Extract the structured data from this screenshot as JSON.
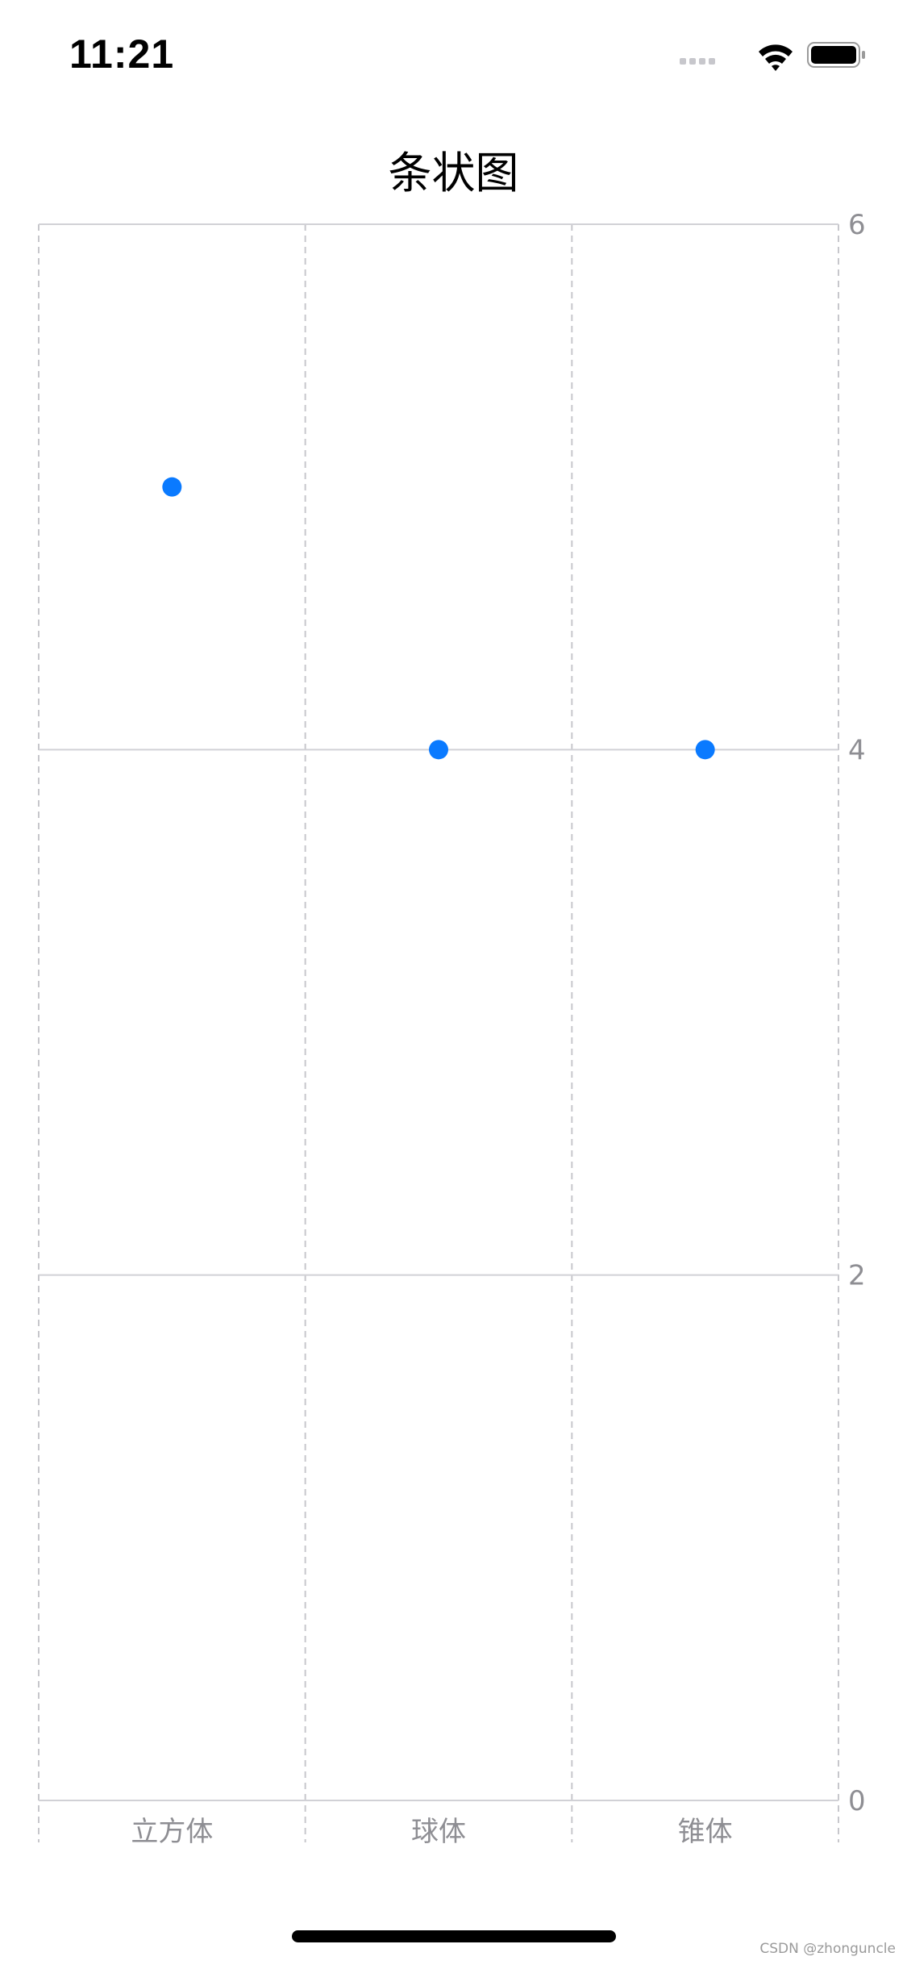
{
  "status_bar": {
    "time": "11:21",
    "icons": [
      "signal-dots-icon",
      "wifi-icon",
      "battery-icon"
    ]
  },
  "nav": {
    "title": "条状图"
  },
  "watermark": "CSDN @zhonguncle",
  "colors": {
    "point": "#0a7aff",
    "gridline": "#d1d1d6",
    "dashed": "#c7c7cc",
    "label": "#8e8e93"
  },
  "chart_data": {
    "type": "scatter",
    "title": "",
    "xlabel": "",
    "ylabel": "",
    "categories": [
      "立方体",
      "球体",
      "锥体"
    ],
    "values": [
      5,
      4,
      4
    ],
    "ylim": [
      0,
      6
    ],
    "yticks": [
      0,
      2,
      4,
      6
    ],
    "ytick_labels": [
      "0",
      "2",
      "4",
      "6"
    ],
    "y_axis_side": "right",
    "grid": true,
    "legend": "none"
  }
}
